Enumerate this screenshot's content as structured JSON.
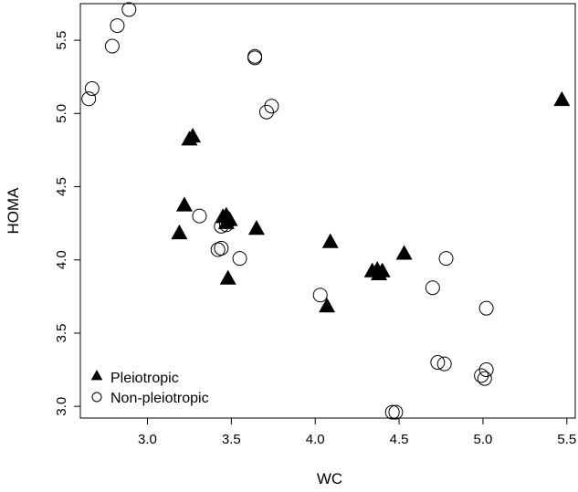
{
  "chart_data": {
    "type": "scatter",
    "xlabel": "WC",
    "ylabel": "HOMA",
    "xlim": [
      2.6,
      5.55
    ],
    "ylim": [
      2.92,
      5.75
    ],
    "x_ticks": [
      3.0,
      3.5,
      4.0,
      4.5,
      5.0,
      5.5
    ],
    "x_tick_labels": [
      "3.0",
      "3.5",
      "4.0",
      "4.5",
      "5.0",
      "5.5"
    ],
    "y_ticks": [
      3.0,
      3.5,
      4.0,
      4.5,
      5.0,
      5.5
    ],
    "y_tick_labels": [
      "3.0",
      "3.5",
      "4.0",
      "4.5",
      "5.0",
      "5.5"
    ],
    "grid": false,
    "legend": "bottom-left",
    "series": [
      {
        "name": "Pleiotropic",
        "marker": "filled-triangle",
        "color": "#000000",
        "points": [
          [
            3.19,
            4.18
          ],
          [
            3.22,
            4.37
          ],
          [
            3.25,
            4.82
          ],
          [
            3.27,
            4.84
          ],
          [
            3.45,
            4.29
          ],
          [
            3.47,
            4.3
          ],
          [
            3.47,
            4.25
          ],
          [
            3.49,
            4.27
          ],
          [
            3.48,
            3.87
          ],
          [
            3.65,
            4.21
          ],
          [
            4.07,
            3.68
          ],
          [
            4.09,
            4.12
          ],
          [
            4.34,
            3.92
          ],
          [
            4.37,
            3.93
          ],
          [
            4.38,
            3.9
          ],
          [
            4.4,
            3.92
          ],
          [
            4.53,
            4.04
          ],
          [
            5.47,
            5.09
          ]
        ]
      },
      {
        "name": "Non-pleiotropic",
        "marker": "open-circle",
        "color": "#000000",
        "points": [
          [
            2.65,
            5.1
          ],
          [
            2.67,
            5.17
          ],
          [
            2.79,
            5.46
          ],
          [
            2.82,
            5.6
          ],
          [
            2.89,
            5.71
          ],
          [
            3.31,
            4.3
          ],
          [
            3.42,
            4.07
          ],
          [
            3.44,
            4.08
          ],
          [
            3.44,
            4.23
          ],
          [
            3.47,
            4.24
          ],
          [
            3.55,
            4.01
          ],
          [
            3.64,
            5.39
          ],
          [
            3.64,
            5.38
          ],
          [
            3.71,
            5.01
          ],
          [
            3.74,
            5.05
          ],
          [
            4.03,
            3.76
          ],
          [
            4.46,
            2.96
          ],
          [
            4.48,
            2.96
          ],
          [
            4.7,
            3.81
          ],
          [
            4.73,
            3.3
          ],
          [
            4.77,
            3.29
          ],
          [
            4.78,
            4.01
          ],
          [
            4.99,
            3.21
          ],
          [
            5.01,
            3.19
          ],
          [
            5.02,
            3.25
          ],
          [
            5.02,
            3.67
          ]
        ]
      }
    ]
  }
}
